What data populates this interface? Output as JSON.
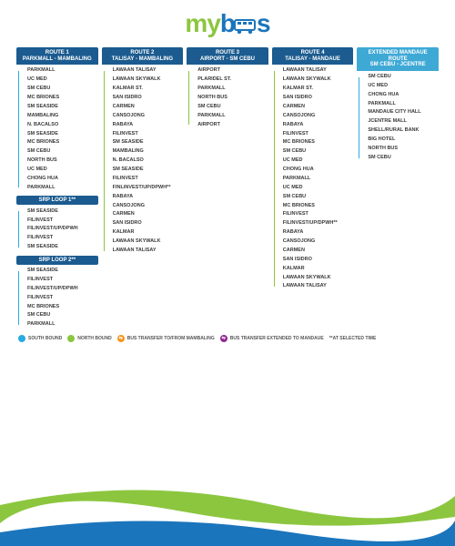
{
  "brand": {
    "text_my": "my",
    "text_b": "b",
    "text_s": "s",
    "color_my": "#8cc63f",
    "color_bs": "#1b75bc",
    "bus_icon_color": "#1b75bc"
  },
  "colors": {
    "south": "#29abe2",
    "north": "#8cc63f",
    "transfer_mambaling": "#f7941d",
    "transfer_mandaue": "#92278f",
    "header_bg_dark": "#1b5b8f",
    "header_bg_light": "#3fa9d6",
    "line_gray": "#c8c8c8",
    "wave_green": "#8cc63f",
    "wave_blue": "#1b75bc"
  },
  "legend": {
    "south": "SOUTH BOUND",
    "north": "NORTH BOUND",
    "mambaling": "BUS TRANSFER TO/FROM MAMBALING",
    "mandaue": "BUS TRANSFER EXTENDED TO MANDAUE",
    "selected": "**AT SELECTED TIME"
  },
  "columns": [
    {
      "title": "ROUTE 1\nPARKMALL - MAMBALING",
      "header_bg": "#1b5b8f",
      "sections": [
        {
          "dir": "south",
          "stops": [
            {
              "t": "PARKMALL"
            },
            {
              "t": "UC MED",
              "s": " "
            },
            {
              "t": "SM CEBU"
            },
            {
              "t": "MC BRIONES"
            },
            {
              "t": "SM SEASIDE"
            },
            {
              "t": "MAMBALING",
              "s": " ",
              "badge": "mambaling"
            },
            {
              "t": "N. BACALSO",
              "s": " ",
              "badge": "mambaling"
            },
            {
              "t": "SM SEASIDE"
            },
            {
              "t": "MC BRIONES"
            },
            {
              "t": "SM CEBU"
            },
            {
              "t": "NORTH BUS",
              "s": " "
            },
            {
              "t": "UC MED",
              "s": " "
            },
            {
              "t": "CHONG HUA",
              "s": " "
            },
            {
              "t": "PARKMALL"
            }
          ]
        }
      ],
      "subroutes": [
        {
          "title": "SRP LOOP 1**",
          "header_bg": "#1b5b8f",
          "dir": "south",
          "stops": [
            {
              "t": "SM SEASIDE"
            },
            {
              "t": "FILINVEST",
              "s": " "
            },
            {
              "t": "FILINVEST/UP/DPWH",
              "s": " "
            },
            {
              "t": "FILINVEST",
              "s": " "
            },
            {
              "t": "SM SEASIDE"
            }
          ]
        },
        {
          "title": "SRP LOOP 2**",
          "header_bg": "#1b5b8f",
          "dir": "south",
          "stops": [
            {
              "t": "SM SEASIDE"
            },
            {
              "t": "FILINVEST",
              "s": " "
            },
            {
              "t": "FILINVEST/UP/DPWH"
            },
            {
              "t": "FILINVEST",
              "s": " "
            },
            {
              "t": "MC BRIONES"
            },
            {
              "t": "SM CEBU"
            },
            {
              "t": "PARKMALL"
            }
          ]
        }
      ]
    },
    {
      "title": "ROUTE 2\nTALISAY - MAMBALING",
      "header_bg": "#1b5b8f",
      "sections": [
        {
          "dir": "north",
          "stops": [
            {
              "t": "LAWAAN TALISAY",
              "s": " "
            },
            {
              "t": "LAWAAN SKYWALK"
            },
            {
              "t": "KALMAR ST."
            },
            {
              "t": "SAN ISIDRO"
            },
            {
              "t": "CARMEN"
            },
            {
              "t": "CANSOJONG"
            },
            {
              "t": "RABAYA"
            },
            {
              "t": "FILINVEST"
            },
            {
              "t": "SM SEASIDE"
            },
            {
              "t": "MAMBALING",
              "s": " ",
              "badge": "mambaling"
            },
            {
              "t": "N. BACALSO",
              "badge": "mambaling"
            },
            {
              "t": "SM SEASIDE"
            },
            {
              "t": "FILINVEST"
            },
            {
              "t": "FINLINVEST/UP/DPWH**"
            },
            {
              "t": "RABAYA"
            },
            {
              "t": "CANSOJONG"
            },
            {
              "t": "CARMEN"
            },
            {
              "t": "SAN ISIDRO"
            },
            {
              "t": "KALMAR"
            },
            {
              "t": "LAWAAN SKYWALK"
            },
            {
              "t": "LAWAAN TALISAY",
              "s": " "
            }
          ]
        }
      ],
      "subroutes": []
    },
    {
      "title": "ROUTE 3\nAIRPORT - SM CEBU",
      "header_bg": "#1b5b8f",
      "sections": [
        {
          "dir": "north",
          "stops": [
            {
              "t": "AIRPORT"
            },
            {
              "t": "PLARIDEL ST.",
              "s": " "
            },
            {
              "t": "PARKMALL"
            },
            {
              "t": "NORTH BUS",
              "s": " "
            },
            {
              "t": "SM CEBU"
            },
            {
              "t": "PARKMALL"
            },
            {
              "t": "AIRPORT"
            }
          ]
        }
      ],
      "subroutes": []
    },
    {
      "title": "ROUTE 4\nTALISAY - MANDAUE",
      "header_bg": "#1b5b8f",
      "sections": [
        {
          "dir": "north",
          "stops": [
            {
              "t": "LAWAAN TALISAY",
              "s": " "
            },
            {
              "t": "LAWAAN SKYWALK"
            },
            {
              "t": "KALMAR ST."
            },
            {
              "t": "SAN ISIDRO"
            },
            {
              "t": "CARMEN"
            },
            {
              "t": "CANSOJONG"
            },
            {
              "t": "RABAYA"
            },
            {
              "t": "FILINVEST"
            },
            {
              "t": "MC BRIONES"
            },
            {
              "t": "SM CEBU",
              "badge": "mandaue"
            },
            {
              "t": "UC MED",
              "s": " "
            },
            {
              "t": "CHONG HUA"
            },
            {
              "t": "PARKMALL"
            },
            {
              "t": "UC MED",
              "s": " "
            },
            {
              "t": "SM CEBU"
            },
            {
              "t": "MC BRIONES"
            },
            {
              "t": "FILINVEST"
            },
            {
              "t": "FILINVEST/UP/DPWH**"
            },
            {
              "t": "RABAYA"
            },
            {
              "t": "CANSOJONG"
            },
            {
              "t": "CARMEN"
            },
            {
              "t": "SAN ISIDRO"
            },
            {
              "t": "KALMAR"
            },
            {
              "t": "LAWAAN SKYWALK",
              "s": " "
            },
            {
              "t": "LAWAAN TALISAY"
            }
          ]
        }
      ],
      "subroutes": []
    },
    {
      "title": "EXTENDED MANDAUE ROUTE\nSM CEBU - JCENTRE",
      "header_bg": "#3fa9d6",
      "sections": [
        {
          "dir": "south",
          "stops": [
            {
              "t": "SM CEBU"
            },
            {
              "t": "UC MED",
              "s": " "
            },
            {
              "t": "CHONG HUA"
            },
            {
              "t": "PARKMALL"
            },
            {
              "t": "MANDAUE CITY HALL",
              "s": " "
            },
            {
              "t": "JCENTRE MALL"
            },
            {
              "t": "SHELL/RURAL BANK",
              "s": " "
            },
            {
              "t": "BIG HOTEL",
              "s": " "
            },
            {
              "t": "NORTH BUS",
              "s": " "
            },
            {
              "t": "SM CEBU"
            }
          ]
        }
      ],
      "subroutes": []
    }
  ]
}
